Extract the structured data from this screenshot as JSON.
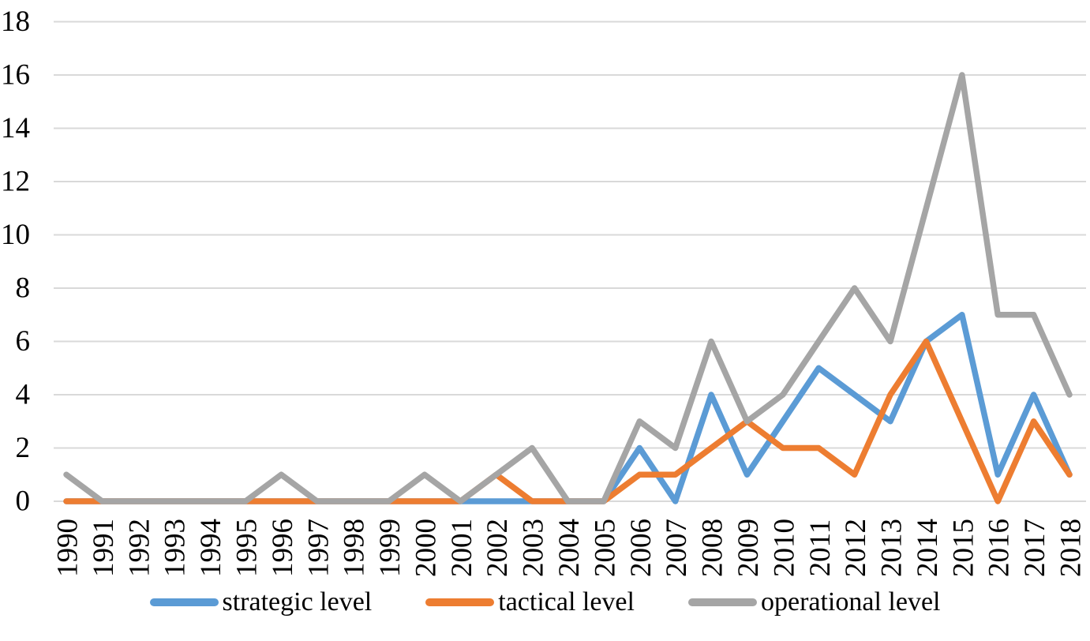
{
  "chart_data": {
    "type": "line",
    "title": "",
    "xlabel": "",
    "ylabel": "",
    "categories": [
      "1990",
      "1991",
      "1992",
      "1993",
      "1994",
      "1995",
      "1996",
      "1997",
      "1998",
      "1999",
      "2000",
      "2001",
      "2002",
      "2003",
      "2004",
      "2005",
      "2006",
      "2007",
      "2008",
      "2009",
      "2010",
      "2011",
      "2012",
      "2013",
      "2014",
      "2015",
      "2016",
      "2017",
      "2018"
    ],
    "series": [
      {
        "name": "strategic level",
        "color": "#5B9BD5",
        "values": [
          0,
          0,
          0,
          0,
          0,
          0,
          0,
          0,
          0,
          0,
          0,
          0,
          0,
          0,
          0,
          0,
          2,
          0,
          4,
          1,
          3,
          5,
          4,
          3,
          6,
          7,
          1,
          4,
          1
        ]
      },
      {
        "name": "tactical level",
        "color": "#ED7D31",
        "values": [
          0,
          0,
          0,
          0,
          0,
          0,
          0,
          0,
          0,
          0,
          0,
          0,
          1,
          0,
          0,
          0,
          1,
          1,
          2,
          3,
          2,
          2,
          1,
          4,
          6,
          3,
          0,
          3,
          1
        ]
      },
      {
        "name": "operational level",
        "color": "#A5A5A5",
        "values": [
          1,
          0,
          0,
          0,
          0,
          0,
          1,
          0,
          0,
          0,
          1,
          0,
          1,
          2,
          0,
          0,
          3,
          2,
          6,
          3,
          4,
          6,
          8,
          6,
          11,
          16,
          7,
          7,
          4
        ]
      }
    ],
    "yticks": [
      0,
      2,
      4,
      6,
      8,
      10,
      12,
      14,
      16,
      18
    ],
    "ylim": [
      0,
      18
    ],
    "grid": "horizontal",
    "gridline_color": "#D9D9D9",
    "axis_text_color": "#000000",
    "background_color": "#FFFFFF",
    "legend_position": "bottom",
    "x_tick_label_rotation_degrees": 90
  },
  "legend": {
    "items": [
      {
        "label": "strategic level"
      },
      {
        "label": "tactical level"
      },
      {
        "label": "operational level"
      }
    ]
  }
}
